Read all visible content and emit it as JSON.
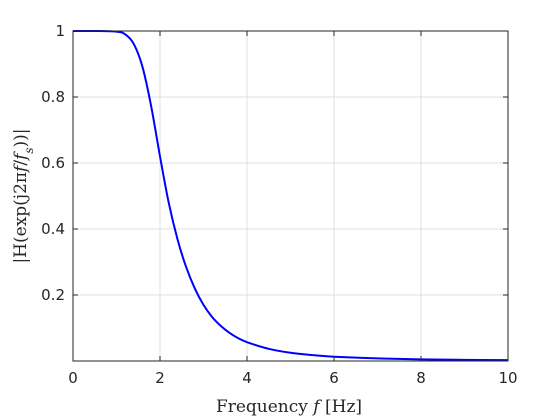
{
  "chart_data": {
    "type": "line",
    "title": "",
    "xlabel": "Frequency f [Hz]",
    "xlabel_parts": {
      "prefix": "Frequency ",
      "variable": "f",
      "suffix": " [Hz]"
    },
    "ylabel": "|H(exp(j2πf/f_s))|",
    "ylabel_parts": {
      "part1": "|H(exp(j2π",
      "var1": "f",
      "part2": "/",
      "var2": "f",
      "sub": "s",
      "part3": "))|"
    },
    "xlim": [
      0,
      10
    ],
    "ylim": [
      0,
      1
    ],
    "xticks": [
      0,
      2,
      4,
      6,
      8,
      10
    ],
    "xtick_labels": [
      "0",
      "2",
      "4",
      "6",
      "8",
      "10"
    ],
    "yticks": [
      0.2,
      0.4,
      0.6,
      0.8,
      1
    ],
    "ytick_labels": [
      "0.2",
      "0.4",
      "0.6",
      "0.8",
      "1"
    ],
    "grid": true,
    "legend": "none",
    "series": [
      {
        "color": "#0000ff",
        "x": [
          0,
          0.5,
          1.0,
          1.2,
          1.4,
          1.6,
          1.8,
          2.0,
          2.2,
          2.4,
          2.6,
          2.8,
          3.0,
          3.2,
          3.4,
          3.6,
          3.8,
          4.0,
          4.5,
          5.0,
          5.5,
          6.0,
          7.0,
          8.0,
          9.0,
          10.0
        ],
        "y": [
          1.0,
          1.0,
          0.998,
          0.99,
          0.96,
          0.89,
          0.77,
          0.62,
          0.48,
          0.37,
          0.285,
          0.22,
          0.17,
          0.133,
          0.106,
          0.085,
          0.069,
          0.057,
          0.037,
          0.025,
          0.018,
          0.013,
          0.008,
          0.005,
          0.0035,
          0.0025
        ]
      }
    ],
    "style": {
      "line_color": "#0000ff",
      "axis_color": "#262626",
      "grid_color": "#dfdfdf"
    }
  }
}
